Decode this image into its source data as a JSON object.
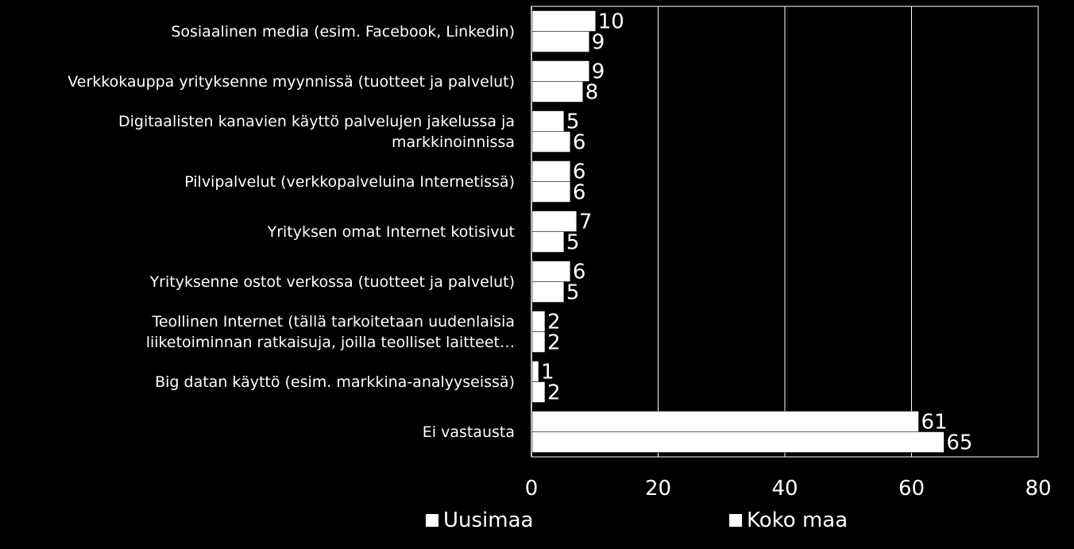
{
  "chart_data": {
    "type": "bar",
    "orientation": "horizontal",
    "categories": [
      "Sosiaalinen media (esim. Facebook, Linkedin)",
      "Verkkokauppa yrityksenne myynnissä (tuotteet ja palvelut)",
      "Digitaalisten kanavien käyttö palvelujen jakelussa ja\nmarkkinoinnissa",
      "Pilvipalvelut  (verkkopalveluina Internetissä)",
      "Yrityksen omat Internet kotisivut",
      "Yrityksenne ostot verkossa (tuotteet ja palvelut)",
      "Teollinen Internet (tällä tarkoitetaan uudenlaisia\nliiketoiminnan ratkaisuja, joilla teolliset laitteet…",
      "Big datan käyttö (esim. markkina-analyyseissä)",
      "Ei vastausta"
    ],
    "series": [
      {
        "name": "Uusimaa",
        "values": [
          10,
          9,
          5,
          6,
          7,
          6,
          2,
          1,
          61
        ]
      },
      {
        "name": "Koko maa",
        "values": [
          9,
          8,
          6,
          6,
          5,
          5,
          2,
          2,
          65
        ]
      }
    ],
    "xlim": [
      0,
      80
    ],
    "xticks": [
      "0",
      "20",
      "40",
      "60",
      "80"
    ],
    "grid": true,
    "legend_position": "bottom",
    "colors": {
      "background": "#000000",
      "bars": "#ffffff",
      "text": "#ffffff"
    }
  },
  "legend": {
    "items": [
      "Uusimaa",
      "Koko maa"
    ]
  }
}
